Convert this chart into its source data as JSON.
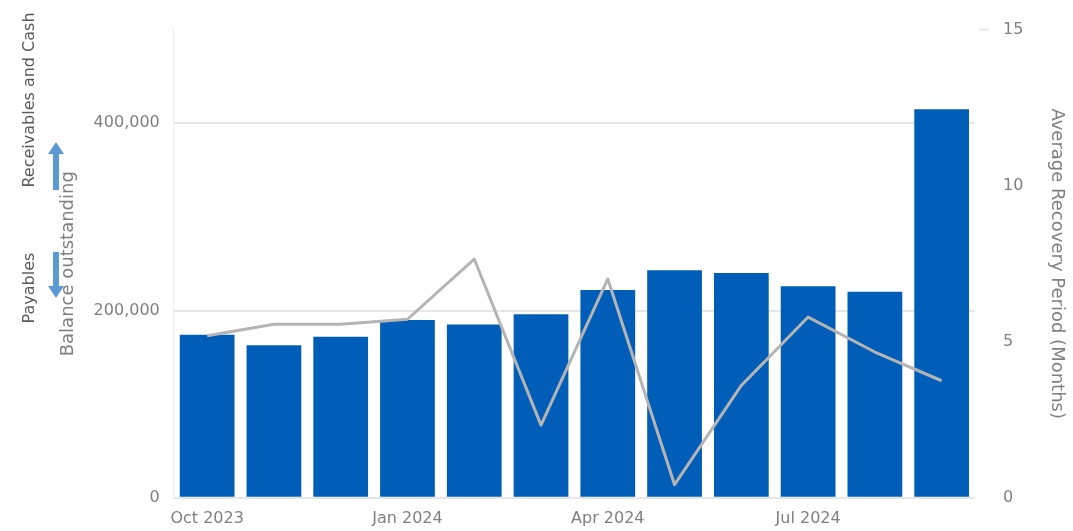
{
  "chart_data": {
    "type": "bar",
    "categories": [
      "Oct 2023",
      null,
      null,
      "Jan 2024",
      null,
      null,
      "Apr 2024",
      null,
      null,
      "Jul 2024",
      null,
      null
    ],
    "series": [
      {
        "color": "#005eb8",
        "values": [
          174000,
          163000,
          172000,
          190000,
          185000,
          196000,
          222000,
          243000,
          240000,
          226000,
          220000,
          415000
        ]
      },
      {
        "type": "line",
        "axis": "y2",
        "color": "#b4b4b4",
        "values": [
          5.19,
          5.56,
          5.56,
          5.72,
          7.65,
          2.33,
          7.01,
          0.42,
          3.6,
          5.79,
          4.67,
          3.75
        ]
      }
    ],
    "ylabel": "Balance outstanding",
    "y2label": "Average Recovery Period (Months)",
    "annotations": [
      "Receivables and Cash",
      "Payables"
    ],
    "ylim": [
      0,
      500000
    ],
    "yticks": [
      0,
      {
        "value": 200000,
        "label": "200,000"
      },
      {
        "value": 400000,
        "label": "400,000"
      },
      {
        "value": 500000,
        "label": null
      }
    ],
    "y2lim": [
      0,
      15
    ],
    "y2ticks": [
      0,
      5,
      10,
      15
    ],
    "grid": "y",
    "legend": false,
    "marker": "none",
    "line_style": "solid"
  }
}
